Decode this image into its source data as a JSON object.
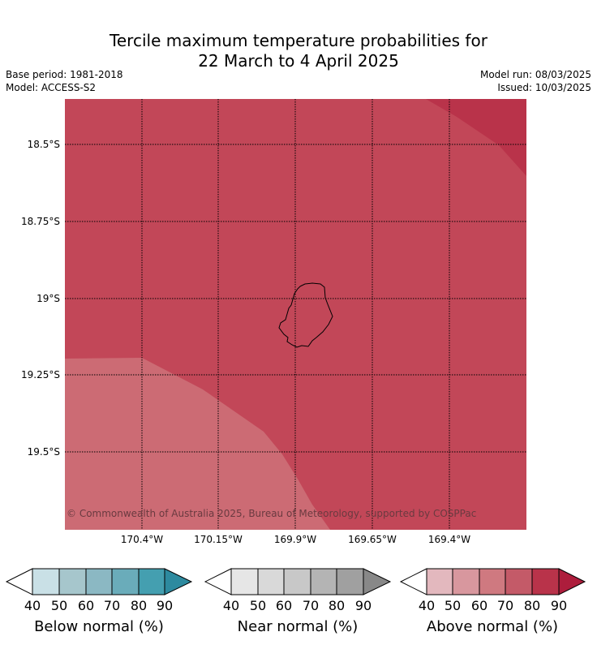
{
  "title_line1": "Tercile maximum temperature probabilities for",
  "title_line2": "22 March to 4 April 2025",
  "meta": {
    "base_period": "Base period: 1981-2018",
    "model": "Model: ACCESS-S2",
    "model_run": "Model run: 08/03/2025",
    "issued": "Issued: 10/03/2025"
  },
  "map": {
    "lat_labels": [
      "18.5°S",
      "18.75°S",
      "19°S",
      "19.25°S",
      "19.5°S"
    ],
    "lon_labels": [
      "170.4°W",
      "170.15°W",
      "169.9°W",
      "169.65°W",
      "169.4°W"
    ],
    "copyright": "© Commonwealth of Australia 2025, Bureau of Meteorology, supported by COSPPac",
    "fill_colors": {
      "above_60_70": "#cc6b74",
      "above_70_80": "#c24758",
      "above_80_90": "#b9334a"
    }
  },
  "colorbars": [
    {
      "label": "Below normal (%)",
      "ticks": [
        "40",
        "50",
        "60",
        "70",
        "80",
        "90"
      ],
      "colors": [
        "#ffffff",
        "#c9e0e6",
        "#a6c6cc",
        "#8bb8c3",
        "#6aacba",
        "#449fb0",
        "#2d8a9f"
      ]
    },
    {
      "label": "Near normal (%)",
      "ticks": [
        "40",
        "50",
        "60",
        "70",
        "80",
        "90"
      ],
      "colors": [
        "#ffffff",
        "#e6e6e6",
        "#d9d9d9",
        "#c8c8c8",
        "#b4b4b4",
        "#a0a0a0",
        "#888888"
      ]
    },
    {
      "label": "Above normal (%)",
      "ticks": [
        "40",
        "50",
        "60",
        "70",
        "80",
        "90"
      ],
      "colors": [
        "#ffffff",
        "#e3b8be",
        "#d8979e",
        "#cf7980",
        "#c45a68",
        "#b9334a",
        "#ad1d3c"
      ]
    }
  ]
}
